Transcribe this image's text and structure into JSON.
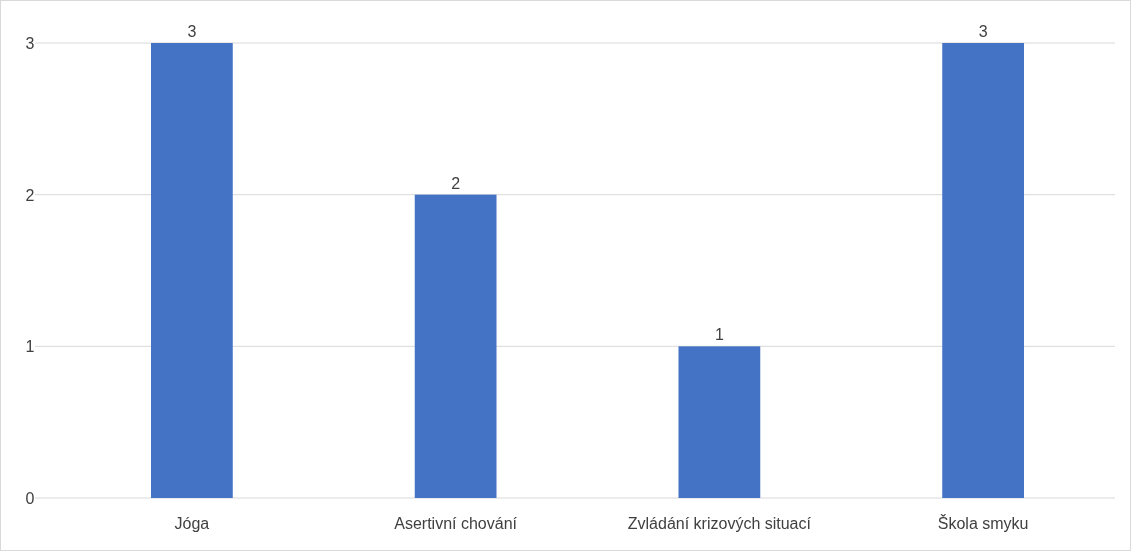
{
  "chart_data": {
    "type": "bar",
    "categories": [
      "Jóga",
      "Asertivní chování",
      "Zvládání krizových situací",
      "Škola smyku"
    ],
    "values": [
      3,
      2,
      1,
      3
    ],
    "color": "#4472c4",
    "ylim": [
      0,
      3
    ],
    "yticks": [
      0,
      1,
      2,
      3
    ],
    "grid": "y",
    "data_labels": true
  }
}
